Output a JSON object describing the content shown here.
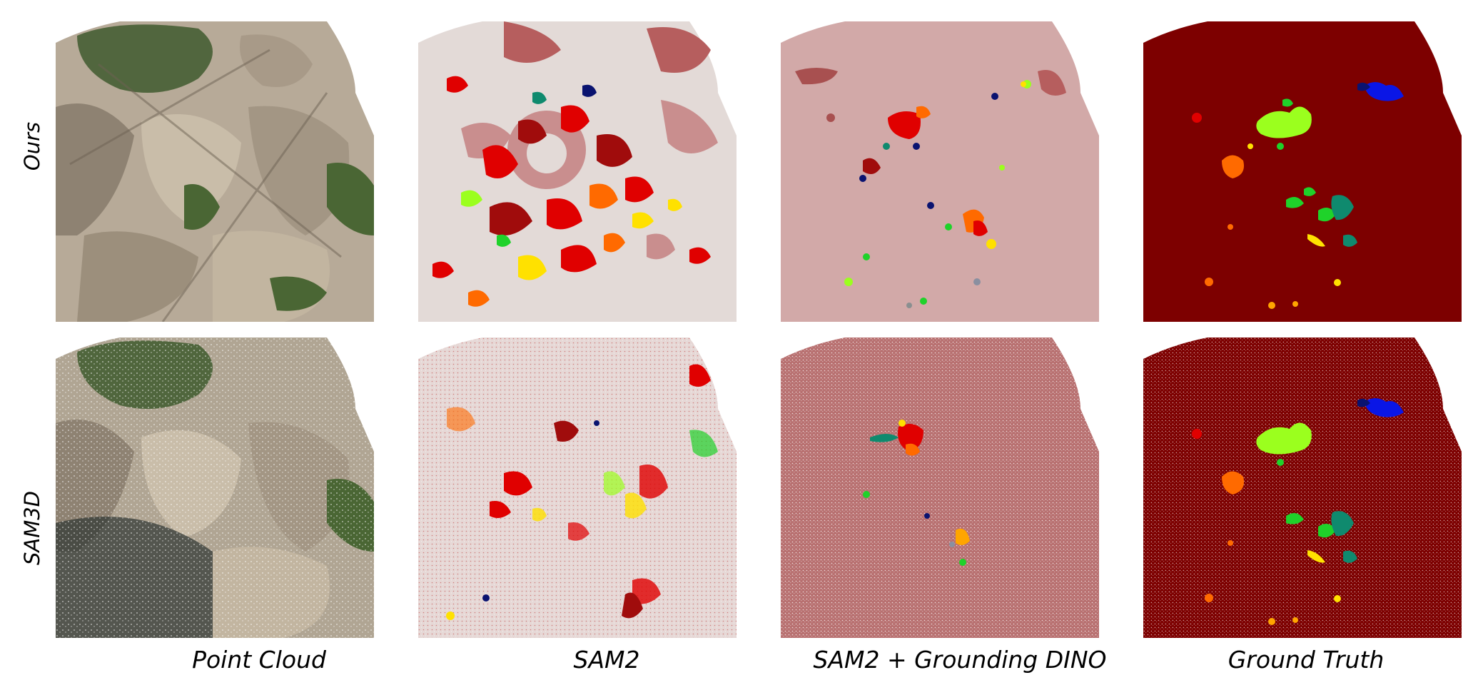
{
  "row_labels": [
    "Ours",
    "SAM3D"
  ],
  "column_labels": [
    "Point Cloud",
    "SAM2",
    "SAM2 + Grounding DINO",
    "Ground Truth"
  ],
  "colors": {
    "rock": "#b7aa98",
    "vegetation": "#3f5a2e",
    "sam2_background": "#e3dad7",
    "dino_background": "#d2a9a8",
    "gt_background": "#7d0000",
    "red": "#e00000",
    "dark_red": "#a00c0c",
    "orange": "#ff6a00",
    "yellow": "#ffe100",
    "lime": "#9bff1e",
    "green": "#1fd22a",
    "teal": "#0f8a6e",
    "blue": "#0a16e6",
    "navy": "#0a1370"
  }
}
